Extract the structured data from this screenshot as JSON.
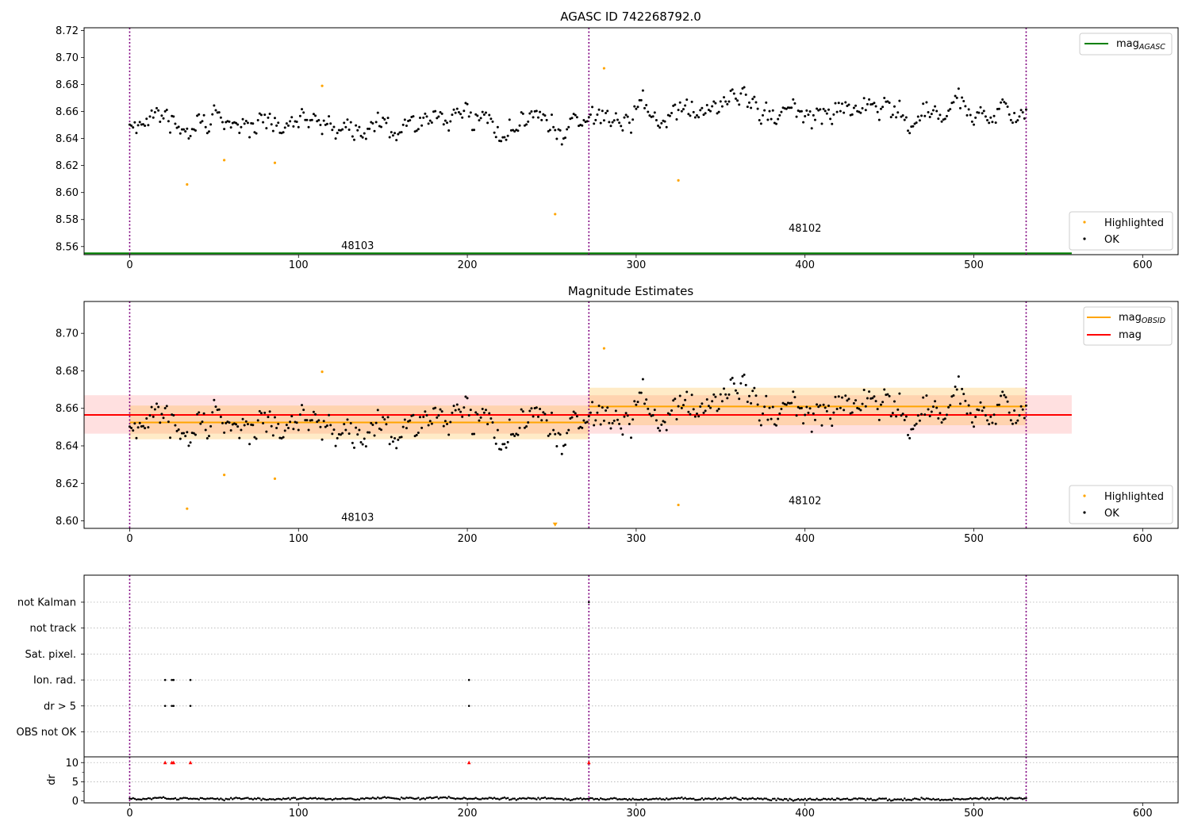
{
  "figure": {
    "title": "AGASC ID 742268792.0"
  },
  "chart_data": [
    {
      "type": "scatter",
      "title": "AGASC ID 742268792.0",
      "xlim": [
        -27,
        621
      ],
      "ylim": [
        8.554,
        8.722
      ],
      "xticks": [
        0,
        100,
        200,
        300,
        400,
        500,
        600
      ],
      "xtick_labels": [
        "0",
        "100",
        "200",
        "300",
        "400",
        "500",
        "600"
      ],
      "yticks": [
        8.56,
        8.58,
        8.6,
        8.62,
        8.64,
        8.66,
        8.68,
        8.7,
        8.72
      ],
      "ytick_labels": [
        "8.56",
        "8.58",
        "8.60",
        "8.62",
        "8.64",
        "8.66",
        "8.68",
        "8.70",
        "8.72"
      ],
      "obsid_boundaries": [
        0,
        272,
        531
      ],
      "obsid_labels": [
        {
          "text": "48103",
          "x": 135,
          "y": 8.558
        },
        {
          "text": "48102",
          "x": 400,
          "y": 8.571
        }
      ],
      "reference_lines": [
        {
          "name": "mag",
          "sub": "AGASC",
          "y": 8.555,
          "x_range": [
            -27,
            558
          ],
          "color": "#008000"
        }
      ],
      "highlighted": {
        "name": "Highlighted",
        "color": "#ffa500",
        "points": [
          [
            34,
            8.606
          ],
          [
            56,
            8.624
          ],
          [
            86,
            8.622
          ],
          [
            114,
            8.679
          ],
          [
            252,
            8.584
          ],
          [
            281,
            8.692
          ],
          [
            325,
            8.609
          ]
        ]
      },
      "ok_series": {
        "name": "OK",
        "color": "#000000",
        "x_range": [
          0,
          531
        ],
        "segments": [
          {
            "start": 0,
            "end": 271,
            "base": 8.6525,
            "spread": 0.0115
          },
          {
            "start": 272,
            "end": 531,
            "base": 8.661,
            "spread": 0.012
          }
        ]
      },
      "legend": {
        "placement": "top-right, bottom-right"
      }
    },
    {
      "type": "scatter",
      "title": "Magnitude Estimates",
      "xlim": [
        -27,
        621
      ],
      "ylim": [
        8.596,
        8.717
      ],
      "xticks": [
        0,
        100,
        200,
        300,
        400,
        500,
        600
      ],
      "xtick_labels": [
        "0",
        "100",
        "200",
        "300",
        "400",
        "500",
        "600"
      ],
      "yticks": [
        8.6,
        8.62,
        8.64,
        8.66,
        8.68,
        8.7
      ],
      "ytick_labels": [
        "8.60",
        "8.62",
        "8.64",
        "8.66",
        "8.68",
        "8.70"
      ],
      "obsid_boundaries": [
        0,
        272,
        531
      ],
      "obsid_labels": [
        {
          "text": "48103",
          "x": 135,
          "y": 8.6
        },
        {
          "text": "48102",
          "x": 400,
          "y": 8.609
        }
      ],
      "bands": [
        {
          "x_range": [
            -27,
            558
          ],
          "y_range": [
            8.6465,
            8.667
          ],
          "color": "#ff0000",
          "opacity": 0.12
        },
        {
          "x_range": [
            0,
            272
          ],
          "y_range": [
            8.6435,
            8.6615
          ],
          "color": "#ffa500",
          "opacity": 0.22
        },
        {
          "x_range": [
            272,
            531
          ],
          "y_range": [
            8.651,
            8.671
          ],
          "color": "#ffa500",
          "opacity": 0.22
        }
      ],
      "estimates": [
        {
          "name": "mag",
          "sub": "OBSID",
          "color": "#ffa500",
          "lines": [
            {
              "x_range": [
                0,
                272
              ],
              "y": 8.6525
            },
            {
              "x_range": [
                272,
                531
              ],
              "y": 8.661
            }
          ]
        },
        {
          "name": "mag",
          "sub": "",
          "color": "#ff0000",
          "lines": [
            {
              "x_range": [
                -27,
                558
              ],
              "y": 8.6565
            }
          ]
        }
      ],
      "highlighted": {
        "name": "Highlighted",
        "color": "#ffa500",
        "points": [
          [
            34,
            8.6065
          ],
          [
            56,
            8.6245
          ],
          [
            86,
            8.6225
          ],
          [
            114,
            8.6795
          ],
          [
            281,
            8.692
          ],
          [
            325,
            8.6085
          ]
        ],
        "offscale_markers": [
          [
            252,
            8.598
          ]
        ]
      },
      "ok_series": {
        "name": "OK",
        "color": "#000000",
        "same_as_panel": 0
      },
      "legend": {
        "placement": "top-right, bottom-right"
      }
    },
    {
      "type": "scatter",
      "title": "",
      "xlim": [
        -27,
        621
      ],
      "flag_rows": [
        "not Kalman",
        "not track",
        "Sat. pixel.",
        "Ion. rad.",
        "dr > 5",
        "OBS not OK"
      ],
      "flag_points": [
        {
          "row": "not Kalman",
          "x": [
            272
          ]
        },
        {
          "row": "Ion. rad.",
          "x": [
            21,
            25,
            26,
            36,
            201
          ]
        },
        {
          "row": "dr > 5",
          "x": [
            21,
            25,
            26,
            36,
            201
          ]
        }
      ],
      "obsid_boundaries": [
        0,
        272,
        531
      ]
    },
    {
      "type": "scatter",
      "title": "",
      "xlabel": "",
      "ylabel": "dr",
      "xlim": [
        -27,
        621
      ],
      "ylim": [
        -0.5,
        11.5
      ],
      "xticks": [
        0,
        100,
        200,
        300,
        400,
        500,
        600
      ],
      "xtick_labels": [
        "0",
        "100",
        "200",
        "300",
        "400",
        "500",
        "600"
      ],
      "yticks": [
        0,
        5,
        10
      ],
      "ytick_labels": [
        "0",
        "5",
        "10"
      ],
      "clipped_markers": {
        "color": "#ff0000",
        "x": [
          21,
          25,
          26,
          36,
          201,
          272
        ],
        "y": 10
      },
      "dr_series": {
        "color": "#000000",
        "x_range": [
          0,
          531
        ],
        "base": 0.6,
        "spread": 0.45
      },
      "obsid_boundaries": [
        0,
        272,
        531
      ]
    }
  ]
}
